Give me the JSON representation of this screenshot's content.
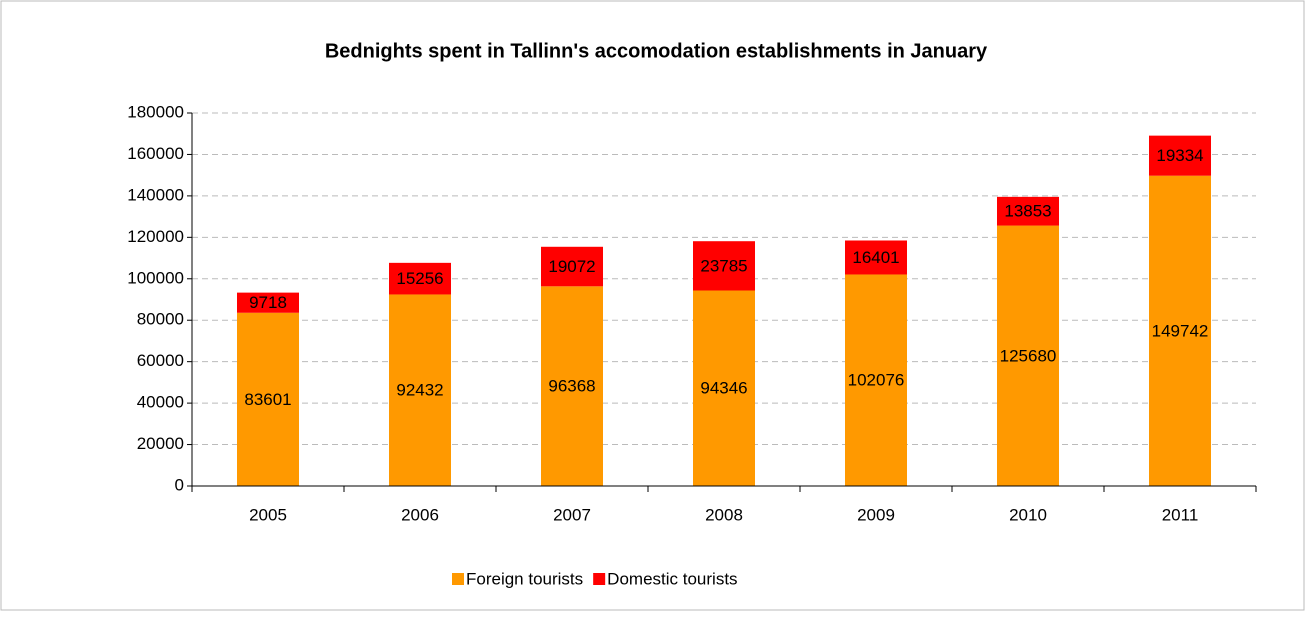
{
  "chart_data": {
    "type": "stacked_bar",
    "title": "Bednights spent in Tallinn's accomodation establishments in January",
    "categories": [
      "2005",
      "2006",
      "2007",
      "2008",
      "2009",
      "2010",
      "2011"
    ],
    "series": [
      {
        "name": "Foreign tourists",
        "color": "#ff9900",
        "values": [
          83601,
          92432,
          96368,
          94346,
          102076,
          125680,
          149742
        ]
      },
      {
        "name": "Domestic tourists",
        "color": "#ff0000",
        "values": [
          9718,
          15256,
          19072,
          23785,
          16401,
          13853,
          19334
        ]
      }
    ],
    "ylim": [
      0,
      180000
    ],
    "yticks": [
      0,
      20000,
      40000,
      60000,
      80000,
      100000,
      120000,
      140000,
      160000,
      180000
    ],
    "grid": true,
    "legend": "bottom"
  }
}
